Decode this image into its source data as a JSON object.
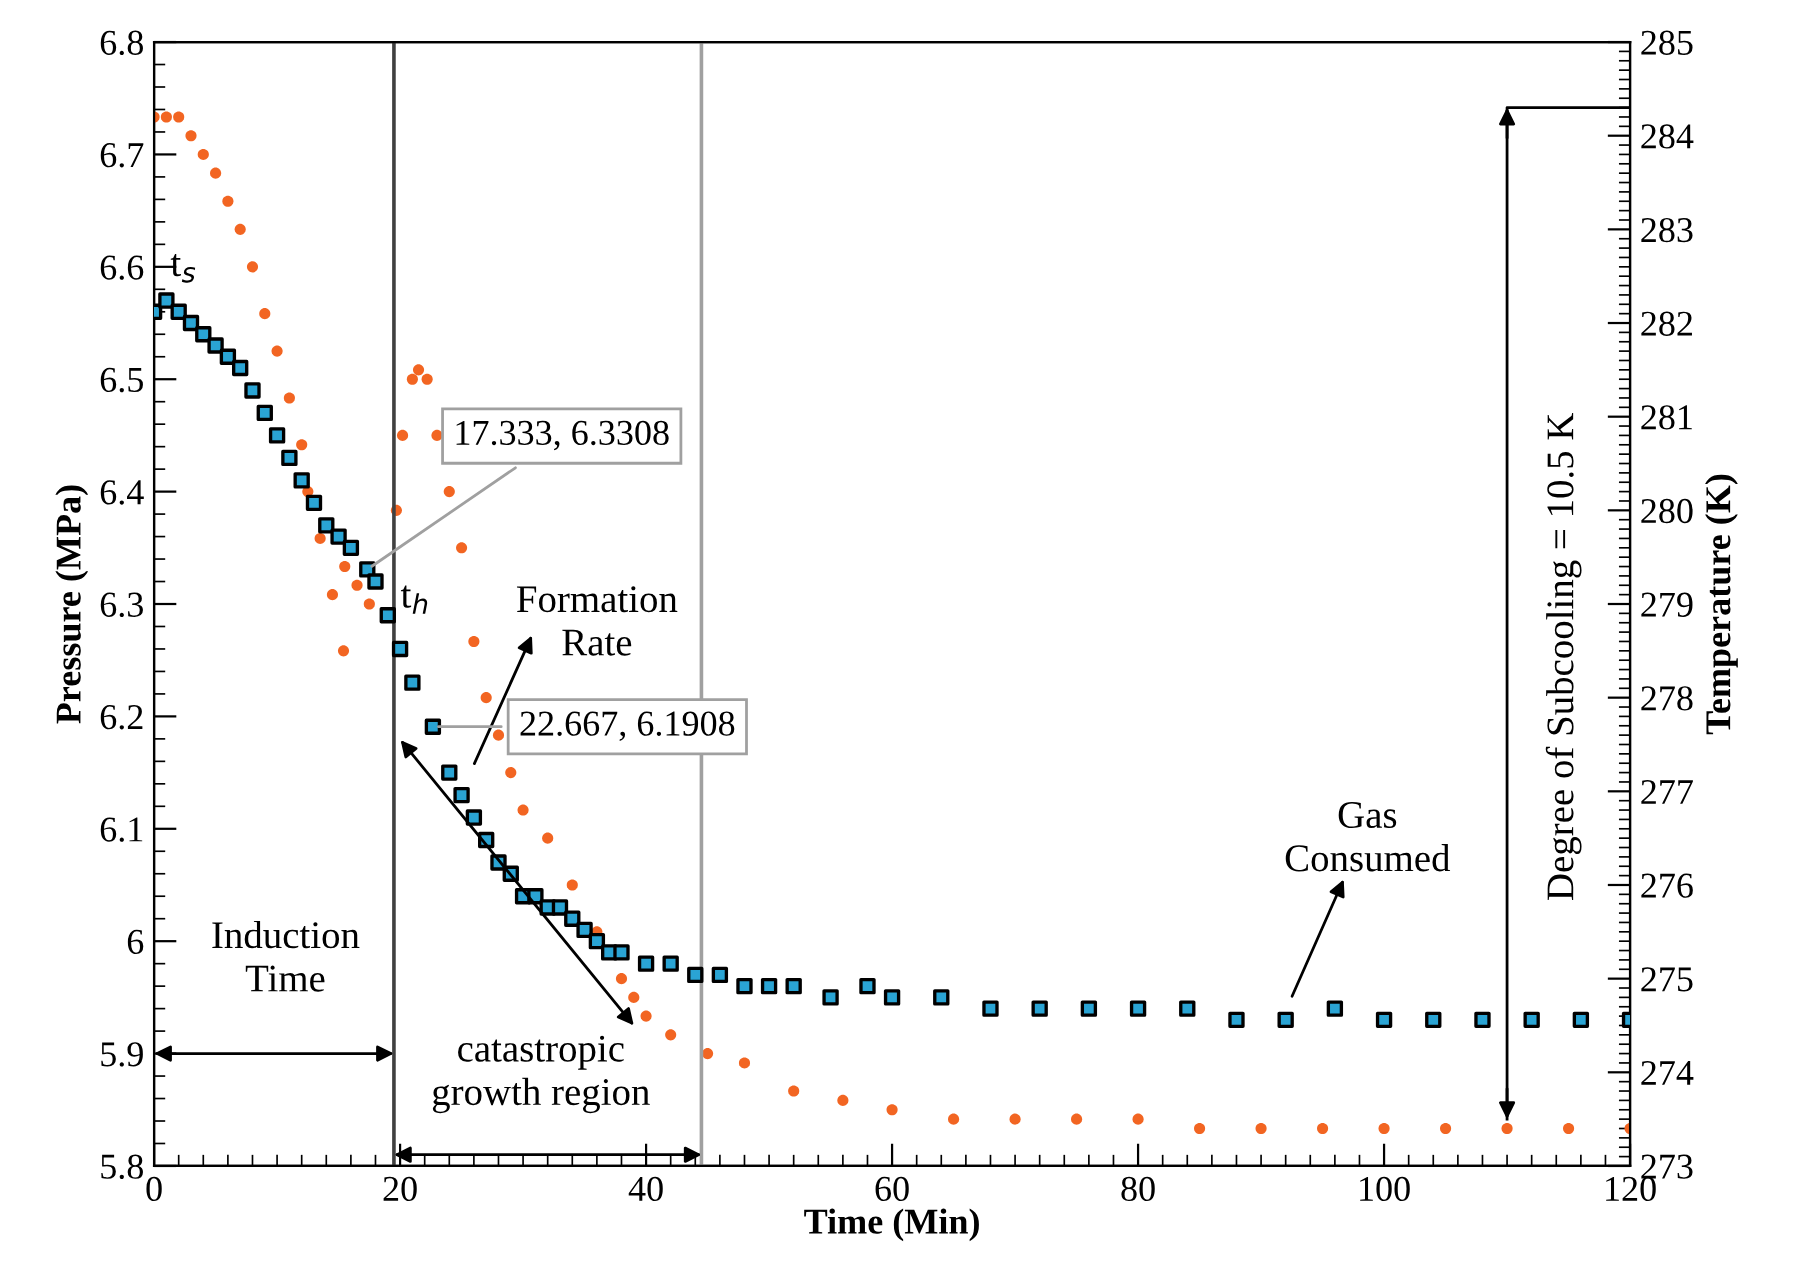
{
  "chart_data": {
    "type": "scatter",
    "xlabel": "Time (Min)",
    "ylabel": "Pressure (MPa)",
    "y2label": "Temperature (K)",
    "xlim": [
      0,
      120
    ],
    "xticks": [
      0,
      20,
      40,
      60,
      80,
      100,
      120
    ],
    "ylim": [
      5.8,
      6.8
    ],
    "yticks": [
      5.8,
      5.9,
      6,
      6.1,
      6.2,
      6.3,
      6.4,
      6.5,
      6.6,
      6.7,
      6.8
    ],
    "y2lim": [
      273,
      285
    ],
    "y2ticks": [
      273,
      274,
      275,
      276,
      277,
      278,
      279,
      280,
      281,
      282,
      283,
      284,
      285
    ],
    "grid": false,
    "legend": false,
    "series": [
      {
        "color": "#2aa4d4",
        "marker": "square",
        "x": [
          0,
          1,
          2,
          3,
          4,
          5,
          6,
          7,
          8,
          9,
          10,
          11,
          12,
          13,
          14,
          15,
          16,
          17.333,
          18,
          19,
          20,
          21,
          22.667,
          24,
          25,
          26,
          27,
          28,
          29,
          30,
          31,
          32,
          33,
          34,
          35,
          36,
          37,
          38,
          40,
          42,
          44,
          46,
          48,
          50,
          52,
          55,
          58,
          60,
          64,
          68,
          72,
          76,
          80,
          84,
          88,
          92,
          96,
          100,
          104,
          108,
          112,
          116,
          120
        ],
        "values": [
          6.56,
          6.57,
          6.56,
          6.55,
          6.54,
          6.53,
          6.52,
          6.51,
          6.49,
          6.47,
          6.45,
          6.43,
          6.41,
          6.39,
          6.37,
          6.36,
          6.35,
          6.3308,
          6.32,
          6.29,
          6.26,
          6.23,
          6.1908,
          6.15,
          6.13,
          6.11,
          6.09,
          6.07,
          6.06,
          6.04,
          6.04,
          6.03,
          6.03,
          6.02,
          6.01,
          6.0,
          5.99,
          5.99,
          5.98,
          5.98,
          5.97,
          5.97,
          5.96,
          5.96,
          5.96,
          5.95,
          5.96,
          5.95,
          5.95,
          5.94,
          5.94,
          5.94,
          5.94,
          5.94,
          5.93,
          5.93,
          5.94,
          5.93,
          5.93,
          5.93,
          5.93,
          5.93,
          5.93
        ]
      },
      {
        "color": "#f26522",
        "marker": "circle",
        "axis": "y2",
        "x": [
          0,
          1,
          2,
          3,
          4,
          5,
          6,
          7,
          8,
          9,
          10,
          11,
          12,
          12.5,
          13.5,
          14.5,
          15.4,
          15.5,
          16.5,
          17.5,
          18,
          19.7,
          20.2,
          21,
          21.5,
          22.2,
          23,
          24,
          25,
          26,
          27,
          28,
          29,
          30,
          32,
          34,
          36,
          38,
          39,
          40,
          42,
          45,
          48,
          52,
          56,
          60,
          65,
          70,
          75,
          80,
          85,
          90,
          95,
          100,
          105,
          110,
          115,
          120
        ],
        "values": [
          284.2,
          284.2,
          284.2,
          284.0,
          283.8,
          283.6,
          283.3,
          283.0,
          282.6,
          282.1,
          281.7,
          281.2,
          280.7,
          280.2,
          279.7,
          279.1,
          278.5,
          279.4,
          279.2,
          279.0,
          null,
          280.0,
          280.8,
          281.4,
          281.5,
          281.4,
          280.8,
          280.2,
          279.6,
          278.6,
          278.0,
          277.6,
          277.2,
          276.8,
          276.5,
          276.0,
          275.5,
          275.0,
          274.8,
          274.6,
          274.4,
          274.2,
          274.1,
          273.8,
          273.7,
          273.6,
          273.5,
          273.5,
          273.5,
          273.5,
          273.4,
          273.4,
          273.4,
          273.4,
          273.4,
          273.4,
          273.4,
          273.4
        ]
      },
      {
        "type": "line",
        "color": "#000000",
        "marker": "none",
        "axis": "y2",
        "x": [
          120,
          110,
          110
        ],
        "values": [
          284.3,
          284.3,
          273.5
        ]
      }
    ],
    "ref_lines": [
      {
        "axis": "x",
        "value": 19.5,
        "color": "#404040"
      },
      {
        "axis": "x",
        "value": 44.5,
        "color": "#a0a0a0"
      }
    ],
    "annotations": [
      {
        "text": "17.333, 6.3308",
        "x": 17.333,
        "y": 6.3308
      },
      {
        "text": "22.667, 6.1908",
        "x": 22.667,
        "y": 6.1908
      },
      "t$_{s}$",
      "t$_{h}$",
      "Formation\nRate",
      "Induction\nTime",
      "catastropic\ngrowth region",
      "Gas\nConsumed",
      "Degree of Subcooling = 10.5 K"
    ]
  }
}
